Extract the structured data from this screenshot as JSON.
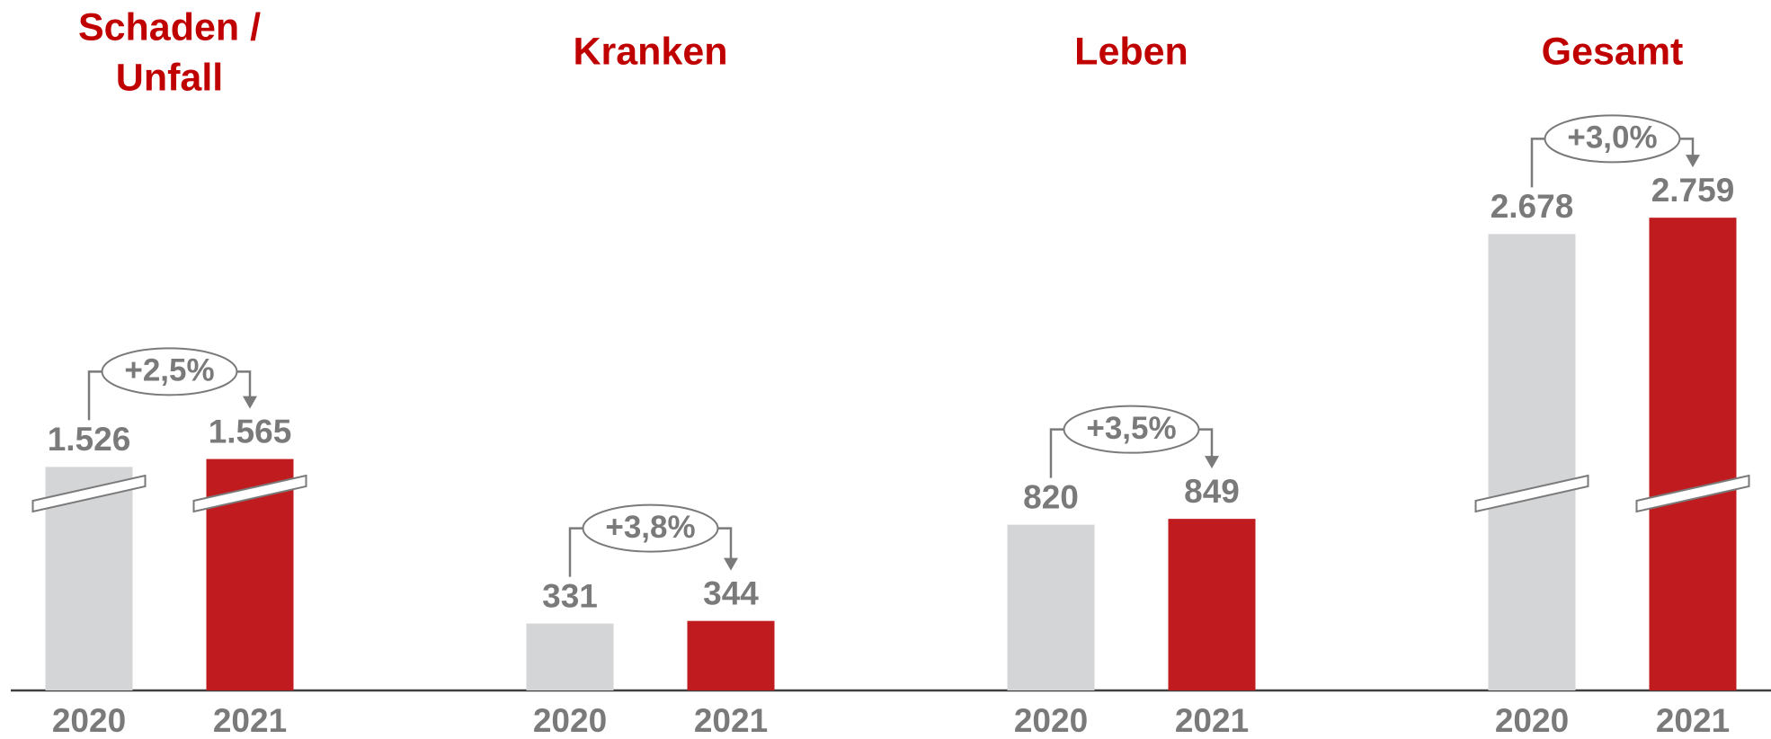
{
  "chart_data": [
    {
      "type": "bar",
      "title": [
        "Schaden /",
        "Unfall"
      ],
      "categories": [
        "2020",
        "2021"
      ],
      "values": [
        1526,
        1565
      ],
      "value_labels": [
        "1.526",
        "1.565"
      ],
      "change": {
        "value": 2.5,
        "label": "+2,5%"
      },
      "axis_break": true,
      "ylim": [
        420,
        3120
      ],
      "colors": [
        "#d4d5d7",
        "#c01c1f"
      ],
      "title_color": "#c00000"
    },
    {
      "type": "bar",
      "title": [
        "Kranken"
      ],
      "categories": [
        "2020",
        "2021"
      ],
      "values": [
        331,
        344
      ],
      "value_labels": [
        "331",
        "344"
      ],
      "change": {
        "value": 3.8,
        "label": "+3,8%"
      },
      "axis_break": false,
      "ylim": [
        0,
        2700
      ],
      "colors": [
        "#d4d5d7",
        "#c01c1f"
      ],
      "title_color": "#c00000"
    },
    {
      "type": "bar",
      "title": [
        "Leben"
      ],
      "categories": [
        "2020",
        "2021"
      ],
      "values": [
        820,
        849
      ],
      "value_labels": [
        "820",
        "849"
      ],
      "change": {
        "value": 3.5,
        "label": "+3,5%"
      },
      "axis_break": false,
      "ylim": [
        0,
        2700
      ],
      "colors": [
        "#d4d5d7",
        "#c01c1f"
      ],
      "title_color": "#c00000"
    },
    {
      "type": "bar",
      "title": [
        "Gesamt"
      ],
      "categories": [
        "2020",
        "2021"
      ],
      "values": [
        2678,
        2759
      ],
      "value_labels": [
        "2.678",
        "2.759"
      ],
      "change": {
        "value": 3.0,
        "label": "+3,0%"
      },
      "axis_break": true,
      "ylim": [
        420,
        3120
      ],
      "colors": [
        "#d4d5d7",
        "#c01c1f"
      ],
      "title_color": "#c00000"
    }
  ]
}
